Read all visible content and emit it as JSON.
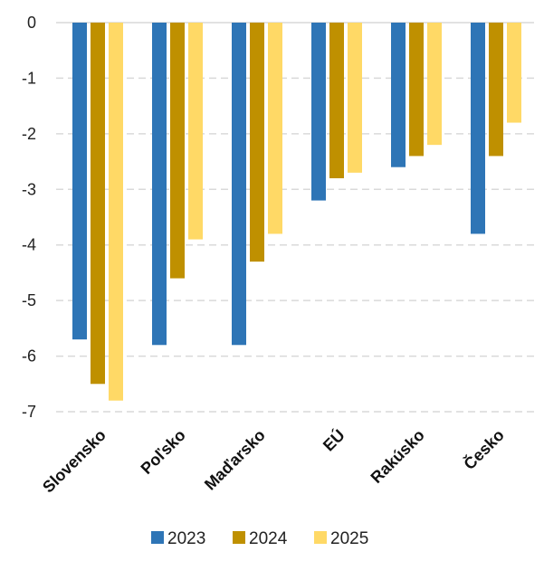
{
  "chart_data": {
    "type": "bar",
    "categories": [
      "Slovensko",
      "Poľsko",
      "Maďarsko",
      "EÚ",
      "Rakúsko",
      "Česko"
    ],
    "series": [
      {
        "name": "2023",
        "color": "#2E75B6",
        "values": [
          -5.7,
          -5.8,
          -5.8,
          -3.2,
          -2.6,
          -3.8
        ]
      },
      {
        "name": "2024",
        "color": "#BF9000",
        "values": [
          -6.5,
          -4.6,
          -4.3,
          -2.8,
          -2.4,
          -2.4
        ]
      },
      {
        "name": "2025",
        "color": "#FFD966",
        "values": [
          -6.8,
          -3.9,
          -3.8,
          -2.7,
          -2.2,
          -1.8
        ]
      }
    ],
    "yticks": [
      0,
      -1,
      -2,
      -3,
      -4,
      -5,
      -6,
      -7
    ],
    "ylim": [
      -7,
      0
    ],
    "grid": true,
    "gridline_color": "#D9D9D9",
    "legend_position": "bottom"
  }
}
